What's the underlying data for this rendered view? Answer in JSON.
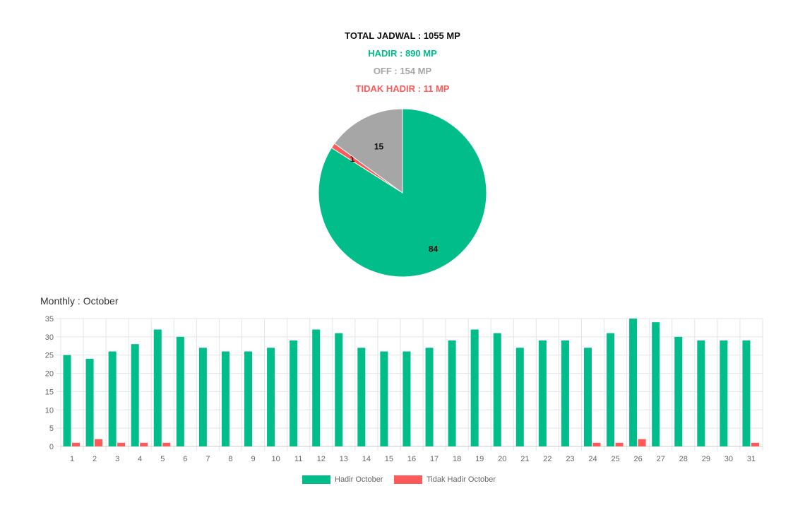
{
  "summary": {
    "total": "TOTAL JADWAL : 1055 MP",
    "hadir": "HADIR : 890 MP",
    "off": "OFF : 154 MP",
    "tidak_hadir": "TIDAK HADIR : 11 MP"
  },
  "colors": {
    "hadir": "#00bd8a",
    "off": "#a6a6a6",
    "tidak_hadir": "#ff5a5a",
    "grid": "#e5e5e5"
  },
  "monthly_title": "Monthly : October",
  "chart_data": [
    {
      "type": "pie",
      "slices": [
        {
          "label": "84",
          "value": 84,
          "color": "#00bd8a"
        },
        {
          "label": "1",
          "value": 1,
          "color": "#ff5a5a"
        },
        {
          "label": "15",
          "value": 15,
          "color": "#a6a6a6"
        }
      ]
    },
    {
      "type": "bar",
      "categories": [
        "1",
        "2",
        "3",
        "4",
        "5",
        "6",
        "7",
        "8",
        "9",
        "10",
        "11",
        "12",
        "13",
        "14",
        "15",
        "16",
        "17",
        "18",
        "19",
        "20",
        "21",
        "22",
        "23",
        "24",
        "25",
        "26",
        "27",
        "28",
        "29",
        "30",
        "31"
      ],
      "series": [
        {
          "name": "Hadir October",
          "color": "#00bd8a",
          "values": [
            25,
            24,
            26,
            28,
            32,
            30,
            27,
            26,
            26,
            27,
            29,
            32,
            31,
            27,
            26,
            26,
            27,
            29,
            32,
            31,
            27,
            29,
            29,
            27,
            31,
            35,
            34,
            30,
            29,
            29,
            29
          ]
        },
        {
          "name": "Tidak Hadir October",
          "color": "#ff5a5a",
          "values": [
            1,
            2,
            1,
            1,
            1,
            0,
            0,
            0,
            0,
            0,
            0,
            0,
            0,
            0,
            0,
            0,
            0,
            0,
            0,
            0,
            0,
            0,
            0,
            1,
            1,
            2,
            0,
            0,
            0,
            0,
            1
          ]
        }
      ],
      "yticks": [
        "0",
        "5",
        "10",
        "15",
        "20",
        "25",
        "30",
        "35"
      ],
      "ylim": [
        0,
        35
      ],
      "grid": true,
      "legend": "bottom"
    }
  ]
}
